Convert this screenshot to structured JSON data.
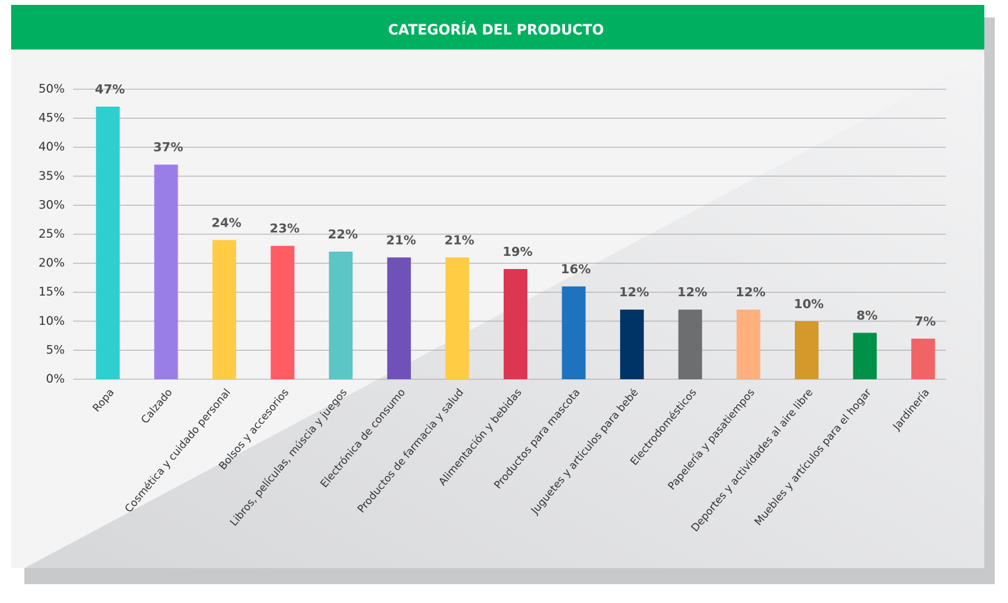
{
  "chart_data": {
    "type": "bar",
    "title": "CATEGORÍA DEL PRODUCTO",
    "categories": [
      "Ropa",
      "Calzado",
      "Cosmética y cuidado personal",
      "Bolsos y accesorios",
      "Libros, películas, múscia y juegos",
      "Electrónica de consumo",
      "Productos de farmacia y salud",
      "Alimentación y bebidas",
      "Productos para mascota",
      "Juguetes y artículos para bebé",
      "Electrodomésticos",
      "Papelería y pasatiempos",
      "Deportes y actividades al aire libre",
      "Muebles y artículos para el hogar",
      "Jardinería"
    ],
    "values": [
      47,
      37,
      24,
      23,
      22,
      21,
      21,
      19,
      16,
      12,
      12,
      12,
      10,
      8,
      7
    ],
    "value_labels": [
      "47%",
      "37%",
      "24%",
      "23%",
      "22%",
      "21%",
      "21%",
      "19%",
      "16%",
      "12%",
      "12%",
      "12%",
      "10%",
      "8%",
      "7%"
    ],
    "colors": [
      "#2ecfcf",
      "#9a7ee8",
      "#ffcc44",
      "#ff5c64",
      "#5cc5c5",
      "#6f52b8",
      "#ffcc44",
      "#dc3752",
      "#1e73be",
      "#003366",
      "#6d6e70",
      "#ffb07c",
      "#d39a2b",
      "#009048",
      "#f06466"
    ],
    "ylim": [
      0,
      50
    ],
    "yticks": [
      {
        "value": 0,
        "label": "0%"
      },
      {
        "value": 5,
        "label": "5%"
      },
      {
        "value": 10,
        "label": "10%"
      },
      {
        "value": 15,
        "label": "15%"
      },
      {
        "value": 20,
        "label": "20%"
      },
      {
        "value": 25,
        "label": "25%"
      },
      {
        "value": 30,
        "label": "30%"
      },
      {
        "value": 35,
        "label": "35%"
      },
      {
        "value": 40,
        "label": "40%"
      },
      {
        "value": 45,
        "label": "45%"
      },
      {
        "value": 50,
        "label": "50%"
      }
    ],
    "grid": true
  }
}
